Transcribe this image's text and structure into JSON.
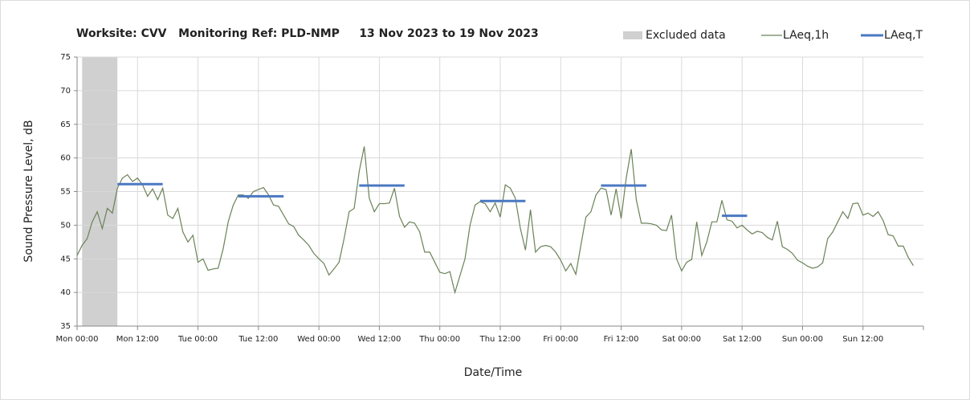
{
  "chart_data": {
    "type": "line",
    "title": "Worksite: CVV   Monitoring Ref: PLD-NMP     13 Nov 2023 to 19 Nov 2023",
    "x_label": "Date/Time",
    "y_label": "Sound Pressure Level, dB",
    "xlim": [
      0,
      168
    ],
    "ylim": [
      35,
      75
    ],
    "yticks": [
      35,
      40,
      45,
      50,
      55,
      60,
      65,
      70,
      75
    ],
    "xticks": [
      {
        "value": 0,
        "label": "Mon 00:00"
      },
      {
        "value": 12,
        "label": "Mon 12:00"
      },
      {
        "value": 24,
        "label": "Tue 00:00"
      },
      {
        "value": 36,
        "label": "Tue 12:00"
      },
      {
        "value": 48,
        "label": "Wed 00:00"
      },
      {
        "value": 60,
        "label": "Wed 12:00"
      },
      {
        "value": 72,
        "label": "Thu 00:00"
      },
      {
        "value": 84,
        "label": "Thu 12:00"
      },
      {
        "value": 96,
        "label": "Fri 00:00"
      },
      {
        "value": 108,
        "label": "Fri 12:00"
      },
      {
        "value": 120,
        "label": "Sat 00:00"
      },
      {
        "value": 132,
        "label": "Sat 12:00"
      },
      {
        "value": 144,
        "label": "Sun 00:00"
      },
      {
        "value": 156,
        "label": "Sun 12:00"
      }
    ],
    "grid": true,
    "legend": "top-right",
    "excluded": {
      "name": "Excluded data",
      "color": "#d0d0d0",
      "start": 1,
      "end": 8
    },
    "series": [
      {
        "name": "LAeq,1h",
        "color": "#6b8258",
        "x": [
          0,
          1,
          2,
          3,
          4,
          5,
          6,
          7,
          8,
          9,
          10,
          11,
          12,
          13,
          14,
          15,
          16,
          17,
          18,
          19,
          20,
          21,
          22,
          23,
          24,
          25,
          26,
          27,
          28,
          29,
          30,
          31,
          32,
          33,
          34,
          35,
          36,
          37,
          38,
          39,
          40,
          41,
          42,
          43,
          44,
          45,
          46,
          47,
          48,
          49,
          50,
          51,
          52,
          53,
          54,
          55,
          56,
          57,
          58,
          59,
          60,
          61,
          62,
          63,
          64,
          65,
          66,
          67,
          68,
          69,
          70,
          71,
          72,
          73,
          74,
          75,
          76,
          77,
          78,
          79,
          80,
          81,
          82,
          83,
          84,
          85,
          86,
          87,
          88,
          89,
          90,
          91,
          92,
          93,
          94,
          95,
          96,
          97,
          98,
          99,
          100,
          101,
          102,
          103,
          104,
          105,
          106,
          107,
          108,
          109,
          110,
          111,
          112,
          113,
          114,
          115,
          116,
          117,
          118,
          119,
          120,
          121,
          122,
          123,
          124,
          125,
          126,
          127,
          128,
          129,
          130,
          131,
          132,
          133,
          134,
          135,
          136,
          137,
          138,
          139,
          140,
          141,
          142,
          143,
          144,
          145,
          146,
          147,
          148,
          149,
          150,
          151,
          152,
          153,
          154,
          155,
          156,
          157,
          158,
          159,
          160,
          161,
          162,
          163,
          164,
          165,
          166
        ],
        "values": [
          45.5,
          47,
          48,
          50.5,
          52,
          49.5,
          52.5,
          51.8,
          55.5,
          57,
          57.5,
          56.5,
          57,
          56,
          54.3,
          55.4,
          53.8,
          55.5,
          51.5,
          51,
          52.5,
          49,
          47.5,
          48.5,
          44.5,
          45,
          43.3,
          43.5,
          43.6,
          46.5,
          50.5,
          53,
          54.5,
          54.5,
          54,
          55,
          55.3,
          55.6,
          54.5,
          53,
          52.8,
          51.5,
          50.2,
          49.8,
          48.5,
          47.8,
          47,
          45.8,
          45,
          44.3,
          42.6,
          43.5,
          44.5,
          48,
          52,
          52.5,
          58,
          61.7,
          54,
          52,
          53.2,
          53.2,
          53.3,
          55.5,
          51.3,
          49.7,
          50.5,
          50.3,
          49,
          46,
          46,
          44.5,
          43,
          42.8,
          43.1,
          40,
          42.5,
          45,
          50,
          53,
          53.5,
          53.2,
          52,
          53.3,
          51.2,
          56,
          55.5,
          54,
          49.5,
          46.3,
          52.3,
          46,
          46.8,
          47,
          46.8,
          46,
          44.8,
          43.2,
          44.3,
          42.7,
          47,
          51.2,
          52,
          54.5,
          55.5,
          55.3,
          51.5,
          55.4,
          51,
          57,
          61.3,
          53.8,
          50.3,
          50.3,
          50.2,
          50,
          49.3,
          49.2,
          51.5,
          45,
          43.2,
          44.5,
          44.9,
          50.5,
          45.5,
          47.5,
          50.5,
          50.5,
          53.7,
          50.8,
          50.6,
          49.6,
          50,
          49.3,
          48.7,
          49.1,
          48.9,
          48.2,
          47.8,
          50.6,
          46.8,
          46.4,
          45.8,
          44.8,
          44.4,
          43.9,
          43.6,
          43.8,
          44.4,
          48,
          49,
          50.5,
          52,
          51,
          53.2,
          53.3,
          51.5,
          51.8,
          51.3,
          52,
          50.7,
          48.6,
          48.4,
          46.9,
          46.9,
          45.2,
          44
        ]
      },
      {
        "name": "LAeq,T",
        "color": "#4a78c2",
        "starts": [
          8,
          32,
          56,
          80,
          104,
          128
        ],
        "ends": [
          17,
          41,
          65,
          89,
          113,
          133
        ],
        "values": [
          56.1,
          54.3,
          55.9,
          53.6,
          55.9,
          51.4
        ]
      }
    ]
  }
}
